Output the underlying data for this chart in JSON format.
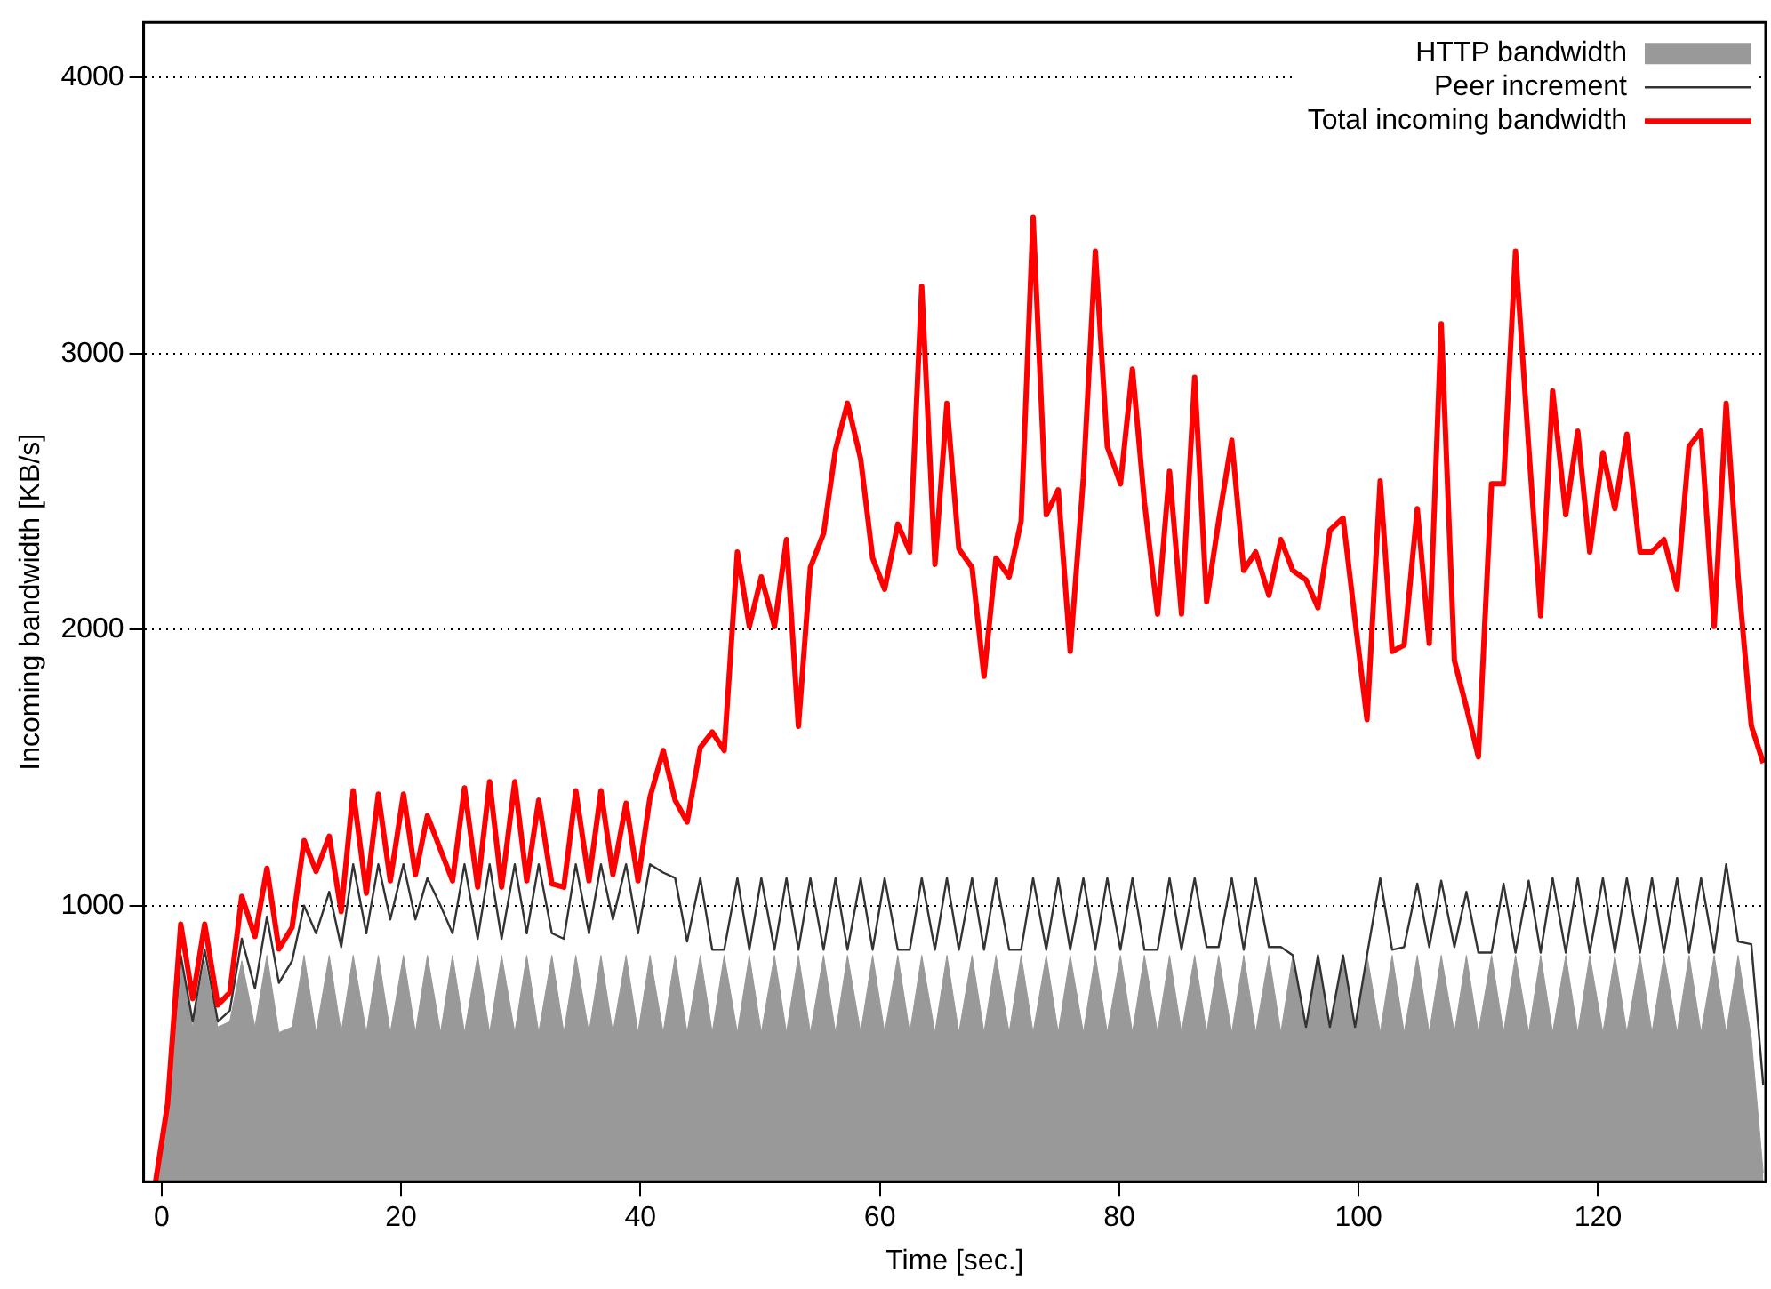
{
  "chart_data": {
    "type": "line",
    "xlabel": "Time [sec.]",
    "ylabel": "Incoming bandwidth [KB/s]",
    "x": [
      -0.5,
      0.5,
      1.6,
      2.6,
      3.6,
      4.7,
      5.7,
      6.7,
      7.8,
      8.8,
      9.8,
      10.9,
      11.9,
      12.9,
      14.0,
      15.0,
      16.0,
      17.1,
      18.1,
      19.1,
      20.2,
      21.2,
      22.2,
      23.3,
      24.3,
      25.3,
      26.4,
      27.4,
      28.4,
      29.5,
      30.5,
      31.5,
      32.6,
      33.6,
      34.6,
      35.7,
      36.7,
      37.7,
      38.8,
      39.8,
      40.8,
      41.9,
      42.9,
      43.9,
      45.0,
      46.0,
      47.0,
      48.1,
      49.1,
      50.1,
      51.2,
      52.2,
      53.2,
      54.2,
      55.3,
      56.3,
      57.3,
      58.4,
      59.4,
      60.4,
      61.5,
      62.5,
      63.5,
      64.6,
      65.6,
      66.6,
      67.7,
      68.7,
      69.7,
      70.8,
      71.8,
      72.8,
      73.9,
      74.9,
      75.9,
      77.0,
      78.0,
      79.0,
      80.1,
      81.1,
      82.1,
      83.2,
      84.2,
      85.2,
      86.3,
      87.3,
      88.3,
      89.4,
      90.4,
      91.4,
      92.5,
      93.5,
      94.5,
      95.6,
      96.6,
      97.6,
      98.7,
      99.7,
      100.7,
      101.8,
      102.8,
      103.8,
      104.9,
      105.9,
      106.9,
      108.0,
      109.0,
      110.0,
      111.1,
      112.1,
      113.1,
      114.2,
      115.2,
      116.2,
      117.3,
      118.3,
      119.3,
      120.4,
      121.4,
      122.4,
      123.5,
      124.5,
      125.5,
      126.6,
      127.6,
      128.6,
      129.7,
      130.7,
      131.7,
      132.8,
      133.8
    ],
    "series": [
      {
        "name": "HTTP bandwidth",
        "type": "area",
        "color": "#999999",
        "values": [
          0,
          280,
          800,
          560,
          800,
          560,
          580,
          800,
          560,
          820,
          540,
          560,
          820,
          540,
          820,
          540,
          820,
          540,
          820,
          540,
          820,
          540,
          820,
          540,
          820,
          540,
          820,
          540,
          820,
          540,
          820,
          540,
          820,
          540,
          820,
          540,
          820,
          540,
          820,
          540,
          820,
          540,
          820,
          540,
          820,
          540,
          820,
          540,
          820,
          540,
          820,
          540,
          820,
          540,
          820,
          540,
          820,
          540,
          820,
          540,
          820,
          540,
          820,
          540,
          820,
          540,
          820,
          540,
          820,
          540,
          820,
          540,
          820,
          540,
          820,
          540,
          820,
          540,
          820,
          540,
          820,
          540,
          820,
          540,
          820,
          540,
          820,
          540,
          820,
          540,
          820,
          540,
          820,
          540,
          820,
          540,
          820,
          540,
          820,
          540,
          820,
          540,
          820,
          540,
          820,
          540,
          820,
          540,
          820,
          540,
          820,
          540,
          820,
          540,
          820,
          540,
          820,
          540,
          820,
          540,
          820,
          540,
          820,
          540,
          820,
          540,
          820,
          540,
          820,
          520,
          30
        ]
      },
      {
        "name": "Peer increment",
        "type": "line",
        "color": "#333333",
        "values": [
          0,
          280,
          820,
          580,
          840,
          580,
          620,
          880,
          700,
          960,
          720,
          800,
          1000,
          900,
          1050,
          850,
          1150,
          900,
          1150,
          950,
          1150,
          950,
          1100,
          1000,
          900,
          1150,
          880,
          1150,
          880,
          1150,
          900,
          1150,
          900,
          880,
          1150,
          900,
          1150,
          950,
          1150,
          900,
          1150,
          1120,
          1100,
          870,
          1100,
          840,
          840,
          1100,
          840,
          1100,
          840,
          1100,
          840,
          1100,
          840,
          1100,
          840,
          1100,
          840,
          1100,
          840,
          840,
          1100,
          840,
          1100,
          840,
          1100,
          840,
          1100,
          840,
          840,
          1100,
          840,
          1100,
          840,
          1100,
          840,
          1100,
          840,
          1100,
          840,
          840,
          1100,
          840,
          1100,
          850,
          850,
          1100,
          840,
          1100,
          850,
          850,
          820,
          560,
          820,
          560,
          820,
          560,
          820,
          1100,
          840,
          850,
          1080,
          850,
          1090,
          850,
          1050,
          830,
          830,
          1080,
          830,
          1090,
          830,
          1100,
          830,
          1100,
          830,
          1100,
          830,
          1100,
          830,
          1100,
          830,
          1100,
          830,
          1100,
          830,
          1150,
          870,
          860,
          350
        ]
      },
      {
        "name": "Total incoming bandwidth",
        "type": "line",
        "color": "#ff0000",
        "values": [
          0,
          281,
          933,
          663,
          933,
          640,
          685,
          1034,
          888,
          1135,
          843,
          921,
          1236,
          1124,
          1252,
          978,
          1416,
          1045,
          1404,
          1090,
          1404,
          1112,
          1326,
          1202,
          1090,
          1427,
          1067,
          1449,
          1067,
          1449,
          1090,
          1382,
          1079,
          1067,
          1416,
          1090,
          1416,
          1112,
          1371,
          1090,
          1393,
          1562,
          1382,
          1303,
          1573,
          1629,
          1562,
          2281,
          2011,
          2191,
          2011,
          2326,
          1650,
          2225,
          2348,
          2652,
          2820,
          2618,
          2259,
          2146,
          2382,
          2281,
          3243,
          2236,
          2820,
          2292,
          2225,
          1831,
          2259,
          2191,
          2393,
          3494,
          2416,
          2506,
          1921,
          2550,
          3371,
          2663,
          2528,
          2944,
          2461,
          2056,
          2573,
          2056,
          2914,
          2101,
          2393,
          2686,
          2214,
          2281,
          2124,
          2326,
          2214,
          2180,
          2079,
          2360,
          2404,
          2034,
          1674,
          2539,
          1921,
          1944,
          2438,
          1950,
          3108,
          1888,
          1719,
          1539,
          2528,
          2528,
          3371,
          2663,
          2050,
          2865,
          2416,
          2719,
          2281,
          2641,
          2438,
          2708,
          2281,
          2281,
          2326,
          2146,
          2663,
          2719,
          2011,
          2820,
          2191,
          1652,
          1517
        ]
      }
    ],
    "xlim": [
      -1.5,
      134
    ],
    "xticks": [
      0,
      20,
      40,
      60,
      80,
      100,
      120
    ],
    "ylim": [
      0,
      4200
    ],
    "yticks": [
      1000,
      2000,
      3000,
      4000
    ],
    "grid": "y",
    "legend": "top right"
  }
}
